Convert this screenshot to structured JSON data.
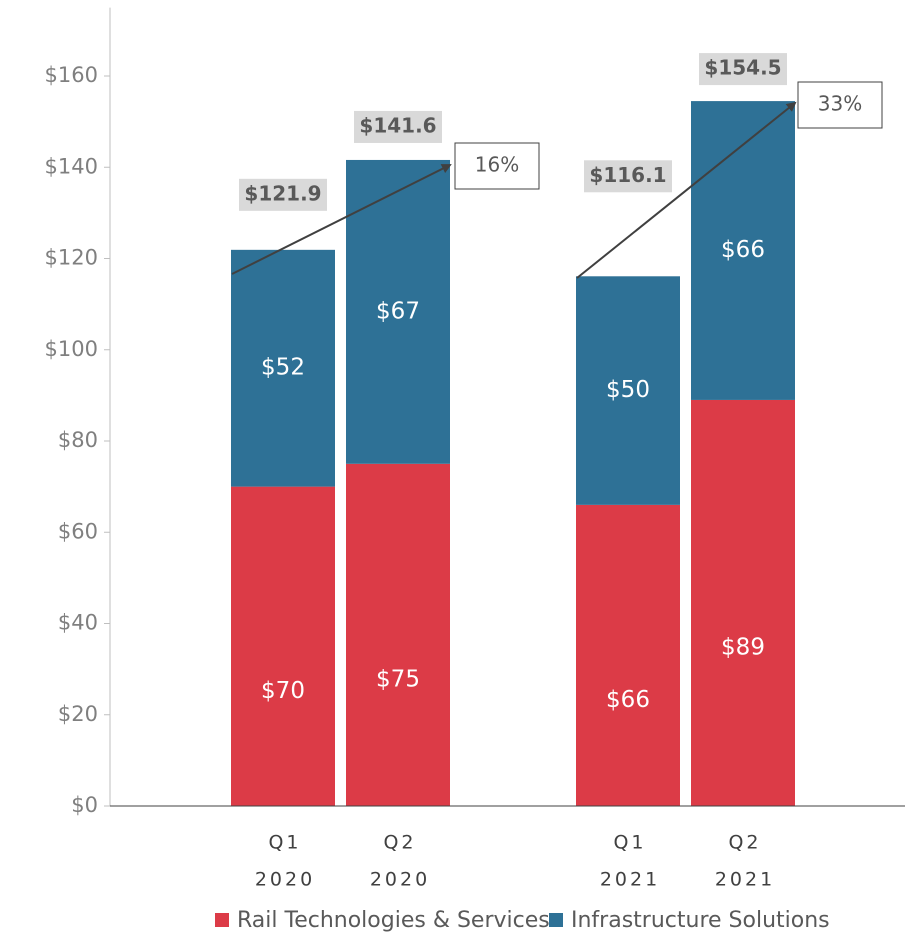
{
  "chart_data": {
    "type": "stacked_bar",
    "categories": [
      [
        "Q1",
        "2020"
      ],
      [
        "Q2",
        "2020"
      ],
      [
        "Q1",
        "2021"
      ],
      [
        "Q2",
        "2021"
      ]
    ],
    "series": [
      {
        "name": "Rail Technologies & Services",
        "color": "#dc3b47",
        "values": [
          70,
          75,
          66,
          89
        ],
        "value_labels": [
          "$70",
          "$75",
          "$66",
          "$89"
        ]
      },
      {
        "name": "Infrastructure Solutions",
        "color": "#2e7196",
        "values": [
          51.9,
          66.6,
          50.1,
          65.5
        ],
        "value_labels": [
          "$52",
          "$67",
          "$50",
          "$66"
        ]
      }
    ],
    "totals": [
      {
        "value": 121.9,
        "label": "$121.9"
      },
      {
        "value": 141.6,
        "label": "$141.6"
      },
      {
        "value": 116.1,
        "label": "$116.1"
      },
      {
        "value": 154.5,
        "label": "$154.5"
      }
    ],
    "growth_labels": [
      "16%",
      "33%"
    ],
    "ylim": [
      0,
      175
    ],
    "yticks": [
      {
        "value": 0,
        "label": "$0"
      },
      {
        "value": 20,
        "label": "$20"
      },
      {
        "value": 40,
        "label": "$40"
      },
      {
        "value": 60,
        "label": "$60"
      },
      {
        "value": 80,
        "label": "$80"
      },
      {
        "value": 100,
        "label": "$100"
      },
      {
        "value": 120,
        "label": "$120"
      },
      {
        "value": 140,
        "label": "$140"
      },
      {
        "value": 160,
        "label": "$160"
      }
    ],
    "legend": "bottom"
  }
}
